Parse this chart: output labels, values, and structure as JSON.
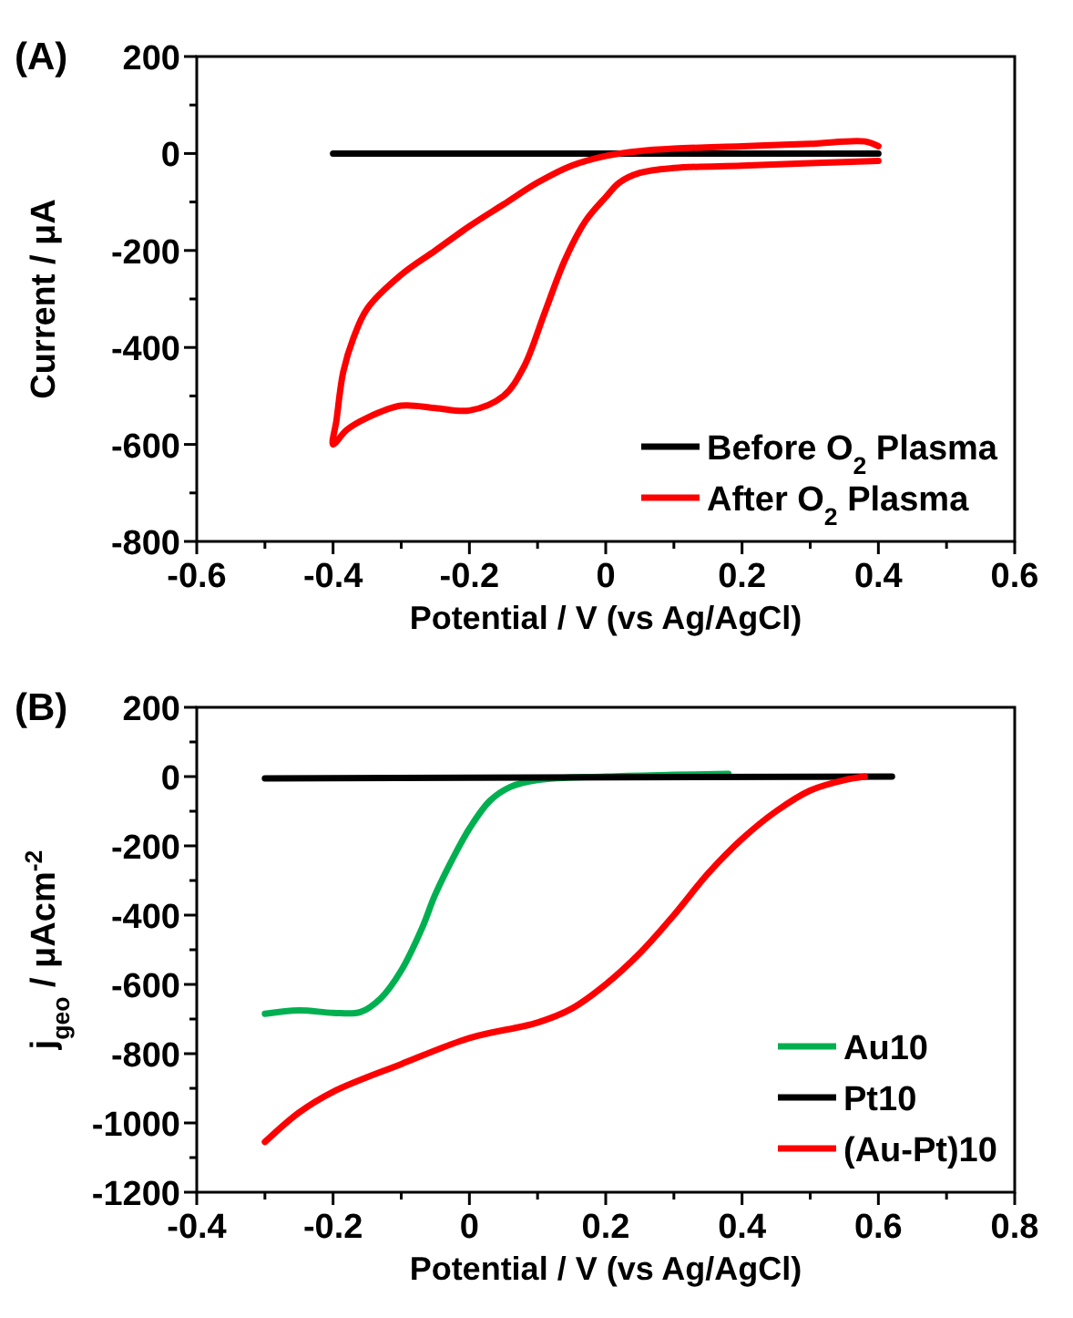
{
  "chart_data": [
    {
      "type": "line",
      "title": "(A)",
      "xlabel": "Potential / V (vs Ag/AgCl)",
      "ylabel": "Current / μA",
      "xlim": [
        -0.6,
        0.6
      ],
      "ylim": [
        -800,
        200
      ],
      "xticks": [
        -0.6,
        {
          "value": -0.5,
          "label": null
        },
        -0.4,
        {
          "value": -0.3,
          "label": null
        },
        -0.2,
        {
          "value": -0.1,
          "label": null
        },
        0,
        {
          "value": 0.1,
          "label": null
        },
        0.2,
        {
          "value": 0.3,
          "label": null
        },
        0.4,
        {
          "value": 0.5,
          "label": null
        },
        0.6
      ],
      "yticks": [
        -800,
        {
          "value": -700,
          "label": null
        },
        -600,
        {
          "value": -500,
          "label": null
        },
        -400,
        {
          "value": -300,
          "label": null
        },
        -200,
        {
          "value": -100,
          "label": null
        },
        0,
        {
          "value": 100,
          "label": null
        },
        200
      ],
      "grid": false,
      "legend": "bottom right",
      "line_style": "solid",
      "series": [
        {
          "name": "Before O$_{2}$ Plasma",
          "color": "#000000",
          "x": [
            -0.4,
            0.4
          ],
          "values": [
            0,
            0
          ]
        },
        {
          "name": "After O$_{2}$ Plasma",
          "color": "#ff0000",
          "x": [
            0.4,
            0.3,
            0.2,
            0.1,
            0.05,
            0.02,
            0,
            -0.03,
            -0.06,
            -0.09,
            -0.12,
            -0.15,
            -0.2,
            -0.25,
            -0.3,
            -0.35,
            -0.38,
            -0.4,
            -0.395,
            -0.385,
            -0.37,
            -0.35,
            -0.3,
            -0.25,
            -0.2,
            -0.15,
            -0.1,
            -0.05,
            0,
            0.05,
            0.1,
            0.2,
            0.3,
            0.38,
            0.4
          ],
          "values": [
            -15,
            -20,
            -25,
            -30,
            -40,
            -60,
            -90,
            -140,
            -220,
            -330,
            -440,
            -500,
            -530,
            -525,
            -520,
            -545,
            -570,
            -600,
            -550,
            -450,
            -380,
            -320,
            -250,
            -200,
            -150,
            -105,
            -60,
            -25,
            -5,
            5,
            10,
            15,
            20,
            25,
            15
          ]
        }
      ]
    },
    {
      "type": "line",
      "title": "(B)",
      "xlabel": "Potential / V (vs Ag/AgCl)",
      "ylabel": "j$_{geo}$ / μAcm$^{-2}$",
      "xlim": [
        -0.4,
        0.8
      ],
      "ylim": [
        -1200,
        200
      ],
      "xticks": [
        -0.4,
        {
          "value": -0.3,
          "label": null
        },
        -0.2,
        {
          "value": -0.1,
          "label": null
        },
        0,
        {
          "value": 0.1,
          "label": null
        },
        0.2,
        {
          "value": 0.3,
          "label": null
        },
        0.4,
        {
          "value": 0.5,
          "label": null
        },
        0.6,
        {
          "value": 0.7,
          "label": null
        },
        0.8
      ],
      "yticks": [
        -1200,
        {
          "value": -1100,
          "label": null
        },
        -1000,
        {
          "value": -900,
          "label": null
        },
        -800,
        {
          "value": -700,
          "label": null
        },
        -600,
        {
          "value": -500,
          "label": null
        },
        -400,
        {
          "value": -300,
          "label": null
        },
        -200,
        {
          "value": -100,
          "label": null
        },
        0,
        {
          "value": 100,
          "label": null
        },
        200
      ],
      "grid": false,
      "legend": "bottom right",
      "line_style": "solid",
      "series": [
        {
          "name": "Au10",
          "color": "#00b050",
          "x": [
            -0.3,
            -0.25,
            -0.2,
            -0.16,
            -0.13,
            -0.1,
            -0.07,
            -0.05,
            -0.02,
            0,
            0.03,
            0.06,
            0.1,
            0.2,
            0.3,
            0.38
          ],
          "values": [
            -685,
            -675,
            -682,
            -680,
            -640,
            -560,
            -440,
            -340,
            -220,
            -150,
            -70,
            -30,
            -10,
            0,
            5,
            8
          ]
        },
        {
          "name": "Pt10",
          "color": "#000000",
          "x": [
            -0.3,
            0.62
          ],
          "values": [
            -5,
            0
          ]
        },
        {
          "name": "(Au-Pt)10",
          "color": "#ff0000",
          "x": [
            -0.3,
            -0.25,
            -0.2,
            -0.1,
            0,
            0.1,
            0.15,
            0.2,
            0.25,
            0.3,
            0.35,
            0.4,
            0.45,
            0.5,
            0.55,
            0.58
          ],
          "values": [
            -1055,
            -970,
            -910,
            -830,
            -755,
            -710,
            -670,
            -600,
            -510,
            -400,
            -280,
            -180,
            -100,
            -40,
            -10,
            0
          ]
        }
      ]
    }
  ]
}
